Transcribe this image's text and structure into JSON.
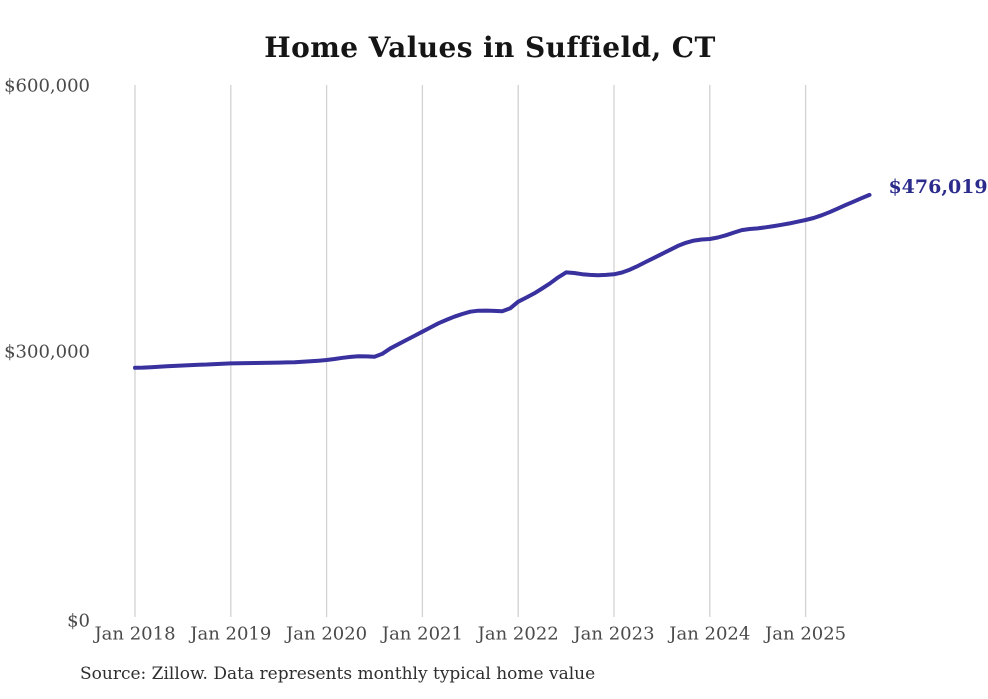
{
  "chart_data": {
    "type": "line",
    "title": "Home Values in Suffield, CT",
    "source": "Source: Zillow. Data represents monthly typical home value",
    "end_label": "$476,019",
    "latest_value": 476019,
    "x_tick_labels": [
      "Jan 2018",
      "Jan 2019",
      "Jan 2020",
      "Jan 2021",
      "Jan 2022",
      "Jan 2023",
      "Jan 2024",
      "Jan 2025"
    ],
    "y_tick_labels": [
      "$0",
      "$300,000",
      "$600,000"
    ],
    "y_tick_values": [
      0,
      300000,
      600000
    ],
    "ylim": [
      0,
      600000
    ],
    "grid": "vertical-only",
    "legend": "none",
    "series": [
      {
        "name": "Typical home value",
        "x": [
          "2018-01",
          "2018-02",
          "2018-03",
          "2018-04",
          "2018-05",
          "2018-06",
          "2018-07",
          "2018-08",
          "2018-09",
          "2018-10",
          "2018-11",
          "2018-12",
          "2019-01",
          "2019-02",
          "2019-03",
          "2019-04",
          "2019-05",
          "2019-06",
          "2019-07",
          "2019-08",
          "2019-09",
          "2019-10",
          "2019-11",
          "2019-12",
          "2020-01",
          "2020-02",
          "2020-03",
          "2020-04",
          "2020-05",
          "2020-06",
          "2020-07",
          "2020-08",
          "2020-09",
          "2020-10",
          "2020-11",
          "2020-12",
          "2021-01",
          "2021-02",
          "2021-03",
          "2021-04",
          "2021-05",
          "2021-06",
          "2021-07",
          "2021-08",
          "2021-09",
          "2021-10",
          "2021-11",
          "2021-12",
          "2022-01",
          "2022-02",
          "2022-03",
          "2022-04",
          "2022-05",
          "2022-06",
          "2022-07",
          "2022-08",
          "2022-09",
          "2022-10",
          "2022-11",
          "2022-12",
          "2023-01",
          "2023-02",
          "2023-03",
          "2023-04",
          "2023-05",
          "2023-06",
          "2023-07",
          "2023-08",
          "2023-09",
          "2023-10",
          "2023-11",
          "2023-12",
          "2024-01",
          "2024-02",
          "2024-03",
          "2024-04",
          "2024-05",
          "2024-06",
          "2024-07",
          "2024-08",
          "2024-09",
          "2024-10",
          "2024-11",
          "2024-12",
          "2025-01",
          "2025-02",
          "2025-03",
          "2025-04",
          "2025-05",
          "2025-06",
          "2025-07",
          "2025-08",
          "2025-09"
        ],
        "values": [
          281000,
          281300,
          281700,
          282200,
          282700,
          283200,
          283700,
          284100,
          284500,
          284800,
          285200,
          285600,
          286000,
          286200,
          286400,
          286500,
          286600,
          286700,
          286900,
          287100,
          287400,
          287800,
          288400,
          289100,
          289900,
          291000,
          292300,
          293400,
          294000,
          293900,
          293600,
          297000,
          303000,
          307700,
          312400,
          317000,
          321800,
          326500,
          331200,
          335100,
          338700,
          341700,
          344300,
          345400,
          345600,
          345200,
          344800,
          348200,
          355600,
          360200,
          365000,
          370500,
          376300,
          383000,
          388600,
          388000,
          386600,
          385800,
          385500,
          385800,
          386500,
          388500,
          391800,
          396000,
          400500,
          405000,
          409500,
          414000,
          418500,
          422000,
          424500,
          425800,
          426300,
          428000,
          430500,
          433500,
          436400,
          437600,
          438300,
          439500,
          440900,
          442300,
          443900,
          445800,
          447700,
          450000,
          453000,
          456500,
          460500,
          464500,
          468400,
          472300,
          476019
        ]
      }
    ],
    "colors": {
      "line": "#38319e",
      "end_label": "#2b2b8c",
      "gridline": "#d2d2d2",
      "axis_text": "#4a4a4a",
      "title_text": "#151515",
      "source_text": "#2e2e2e",
      "background": "#ffffff"
    }
  }
}
